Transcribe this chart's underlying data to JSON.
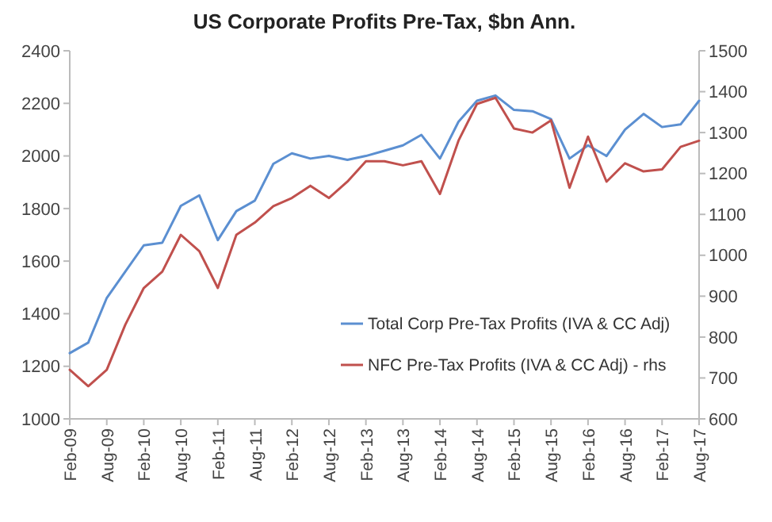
{
  "chart_data": {
    "type": "line",
    "title": "US Corporate Profits Pre-Tax, $bn Ann.",
    "categories": [
      "Feb-09",
      null,
      "Aug-09",
      null,
      "Feb-10",
      null,
      "Aug-10",
      null,
      "Feb-11",
      null,
      "Aug-11",
      null,
      "Feb-12",
      null,
      "Aug-12",
      null,
      "Feb-13",
      null,
      "Aug-13",
      null,
      "Feb-14",
      null,
      "Aug-14",
      null,
      "Feb-15",
      null,
      "Aug-15",
      null,
      "Feb-16",
      null,
      "Aug-16",
      null,
      "Feb-17",
      null,
      "Aug-17"
    ],
    "series": [
      {
        "name": "Total Corp Pre-Tax Profits (IVA & CC Adj)",
        "color": "#5b8fd1",
        "values": [
          1250,
          1290,
          1460,
          1560,
          1660,
          1670,
          1810,
          1850,
          1680,
          1790,
          1830,
          1970,
          2010,
          1990,
          2000,
          1985,
          2000,
          2020,
          2040,
          2080,
          1990,
          2130,
          2210,
          2230,
          2175,
          2170,
          2140,
          1990,
          2040,
          2000,
          2100,
          2160,
          2110,
          2120,
          2210
        ]
      },
      {
        "name": "NFC Pre-Tax Profits (IVA & CC Adj) - rhs",
        "color": "#c0504d",
        "axis": "y2",
        "values": [
          720,
          680,
          720,
          830,
          920,
          960,
          1050,
          1010,
          920,
          1050,
          1080,
          1120,
          1140,
          1170,
          1140,
          1180,
          1230,
          1230,
          1220,
          1230,
          1150,
          1280,
          1370,
          1385,
          1310,
          1300,
          1330,
          1165,
          1290,
          1180,
          1225,
          1205,
          1210,
          1265,
          1280
        ]
      }
    ],
    "ylim": [
      1000,
      2400
    ],
    "yticks": [
      1000,
      1200,
      1400,
      1600,
      1800,
      2000,
      2200,
      2400
    ],
    "y2lim": [
      600,
      1500
    ],
    "y2ticks": [
      600,
      700,
      800,
      900,
      1000,
      1100,
      1200,
      1300,
      1400,
      1500
    ],
    "legend": "bottom right",
    "grid": false,
    "line_style": "solid"
  }
}
